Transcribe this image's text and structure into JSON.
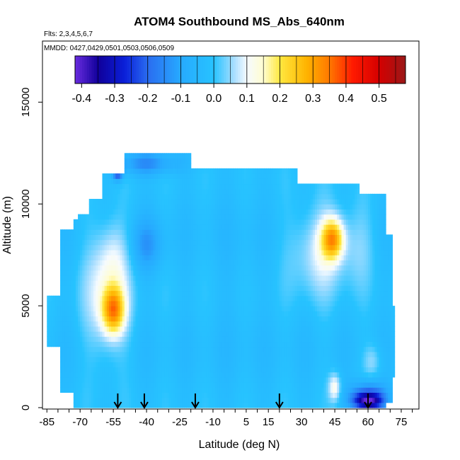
{
  "chart_data": {
    "type": "heatmap",
    "title": "ATOM4 Southbound MS_Abs_640nm",
    "flights_note": "Flts: 2,3,4,5,6,7",
    "dates_note": "MMDD: 0427,0429,0501,0503,0506,0509",
    "xlabel": "Latitude (deg N)",
    "ylabel": "Altitude (m)",
    "xlim": [
      -87,
      83
    ],
    "ylim": [
      0,
      18000
    ],
    "x_ticks": [
      -85,
      -70,
      -55,
      -40,
      -25,
      -10,
      5,
      15,
      30,
      45,
      60,
      75
    ],
    "x_minor_step": 5,
    "y_ticks": [
      0,
      5000,
      10000,
      15000
    ],
    "colorbar": {
      "ticks": [
        "-0.4",
        "-0.3",
        "-0.2",
        "-0.1",
        "0.0",
        "0.1",
        "0.2",
        "0.3",
        "0.4",
        "0.5"
      ],
      "range": [
        -0.42,
        0.58
      ],
      "stops": [
        {
          "v": -0.42,
          "c": "#6a2ce0"
        },
        {
          "v": -0.35,
          "c": "#10009a"
        },
        {
          "v": -0.27,
          "c": "#0a1fd9"
        },
        {
          "v": -0.2,
          "c": "#2a6cf0"
        },
        {
          "v": -0.1,
          "c": "#27aaff"
        },
        {
          "v": 0.0,
          "c": "#27c3ff"
        },
        {
          "v": 0.06,
          "c": "#a6ddff"
        },
        {
          "v": 0.1,
          "c": "#f6fbff"
        },
        {
          "v": 0.15,
          "c": "#fffdd0"
        },
        {
          "v": 0.2,
          "c": "#ffe840"
        },
        {
          "v": 0.28,
          "c": "#ffb400"
        },
        {
          "v": 0.35,
          "c": "#ff7800"
        },
        {
          "v": 0.42,
          "c": "#ff1a00"
        },
        {
          "v": 0.5,
          "c": "#d40000"
        },
        {
          "v": 0.58,
          "c": "#9a1818"
        }
      ]
    },
    "field": {
      "base_value": -0.02,
      "coverage": [
        {
          "x0": -85,
          "x1": -79,
          "y0": 3000,
          "y1": 5500
        },
        {
          "x0": -79,
          "x1": -73,
          "y0": 700,
          "y1": 8800
        },
        {
          "x0": -73,
          "x1": -71,
          "y0": 0,
          "y1": 9200
        },
        {
          "x0": -71,
          "x1": -66,
          "y0": 0,
          "y1": 9600
        },
        {
          "x0": -66,
          "x1": -60,
          "y0": 0,
          "y1": 10300
        },
        {
          "x0": -60,
          "x1": -56,
          "y0": 0,
          "y1": 11400
        },
        {
          "x0": -56,
          "x1": -50,
          "y0": 0,
          "y1": 11500
        },
        {
          "x0": -50,
          "x1": -20,
          "y0": 0,
          "y1": 12400
        },
        {
          "x0": -20,
          "x1": 28,
          "y0": 0,
          "y1": 11800
        },
        {
          "x0": 28,
          "x1": 56,
          "y0": 0,
          "y1": 11000
        },
        {
          "x0": 56,
          "x1": 68,
          "y0": 0,
          "y1": 10500
        },
        {
          "x0": 68,
          "x1": 71,
          "y0": 300,
          "y1": 8500
        },
        {
          "x0": 71,
          "x1": 72,
          "y0": 1500,
          "y1": 5000
        }
      ],
      "features": [
        {
          "x": -55,
          "y": 4800,
          "sx": 3.5,
          "sy": 800,
          "v": 0.28
        },
        {
          "x": -58,
          "y": 5500,
          "sx": 7,
          "sy": 2200,
          "v": 0.12
        },
        {
          "x": -55,
          "y": 7500,
          "sx": 5,
          "sy": 1200,
          "v": 0.06
        },
        {
          "x": 44,
          "y": 8300,
          "sx": 3.5,
          "sy": 700,
          "v": 0.28
        },
        {
          "x": 38,
          "y": 7700,
          "sx": 9,
          "sy": 1500,
          "v": 0.11
        },
        {
          "x": 56,
          "y": 8000,
          "sx": 6,
          "sy": 1400,
          "v": 0.05
        },
        {
          "x": 45,
          "y": 1000,
          "sx": 2,
          "sy": 500,
          "v": 0.14
        },
        {
          "x": 62,
          "y": 2300,
          "sx": 3,
          "sy": 600,
          "v": 0.07
        },
        {
          "x": -53,
          "y": 11800,
          "sx": 1.5,
          "sy": 350,
          "v": -0.4
        },
        {
          "x": -40,
          "y": 12000,
          "sx": 10,
          "sy": 400,
          "v": -0.13
        },
        {
          "x": -40,
          "y": 8000,
          "sx": 5,
          "sy": 900,
          "v": -0.1
        },
        {
          "x": 60,
          "y": 300,
          "sx": 5,
          "sy": 300,
          "v": -0.36
        },
        {
          "x": 60,
          "y": 800,
          "sx": 6,
          "sy": 400,
          "v": -0.15
        },
        {
          "x": 0,
          "y": 6000,
          "sx": 8,
          "sy": 4000,
          "v": -0.01
        }
      ]
    },
    "flight_markers": [
      -53,
      -41,
      -18,
      20,
      60
    ]
  }
}
